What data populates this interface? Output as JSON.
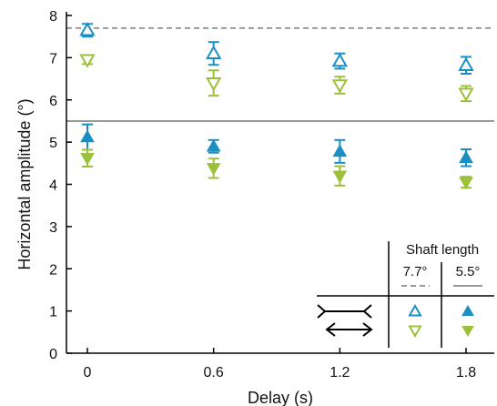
{
  "chart_data": {
    "type": "scatter",
    "title": "",
    "xlabel": "Delay (s)",
    "ylabel": "Horizontal amplitude (°)",
    "x": [
      0,
      0.6,
      1.2,
      1.8
    ],
    "x_tick_labels": [
      "0",
      "0.6",
      "1.2",
      "1.8"
    ],
    "y_tick_labels": [
      "0",
      "1",
      "2",
      "3",
      "4",
      "5",
      "6",
      "7",
      "8"
    ],
    "xlim": [
      -0.12,
      1.92
    ],
    "ylim": [
      0,
      8
    ],
    "grid": false,
    "reference_lines": [
      {
        "y": 7.7,
        "style": "dashed",
        "color": "#999999"
      },
      {
        "y": 5.5,
        "style": "solid",
        "color": "#999999"
      }
    ],
    "series": [
      {
        "marker": "triangle-up-open",
        "color": "#1b8fc4",
        "values": [
          7.65,
          7.1,
          6.92,
          6.82
        ],
        "errors": [
          0.15,
          0.27,
          0.18,
          0.2
        ]
      },
      {
        "marker": "triangle-down-open",
        "color": "#9dc03a",
        "values": [
          6.95,
          6.4,
          6.35,
          6.15
        ],
        "errors": [
          0.1,
          0.3,
          0.2,
          0.18
        ]
      },
      {
        "marker": "triangle-up-filled",
        "color": "#1b8fc4",
        "values": [
          5.12,
          4.9,
          4.78,
          4.63
        ],
        "errors": [
          0.3,
          0.15,
          0.27,
          0.2
        ]
      },
      {
        "marker": "triangle-down-filled",
        "color": "#9dc03a",
        "values": [
          4.62,
          4.38,
          4.2,
          4.05
        ],
        "errors": [
          0.2,
          0.23,
          0.23,
          0.13
        ]
      }
    ],
    "legend": {
      "title": "Shaft length",
      "columns": [
        "7.7°",
        "5.5°"
      ],
      "placement": "bottom-right"
    }
  }
}
